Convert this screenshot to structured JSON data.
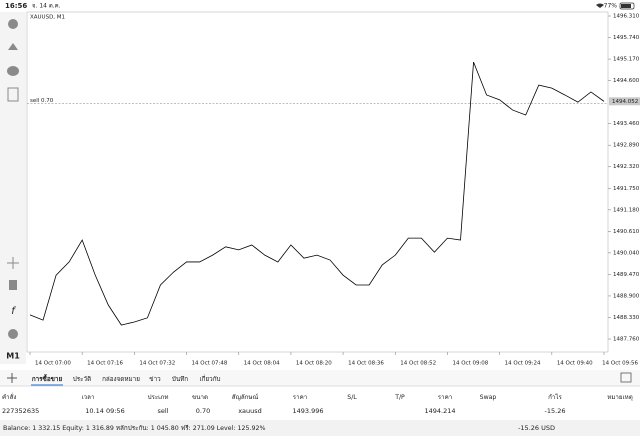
{
  "status_bar": {
    "time": "16:56",
    "date": "จ. 14 ต.ค.",
    "battery": "77%"
  },
  "toolbar": {
    "timeframe": "M1"
  },
  "chart_data": {
    "type": "line",
    "title": "XAUUSD, M1",
    "color": "#000000",
    "categories": [
      "14 Oct 07:00",
      null,
      null,
      null,
      "14 Oct 07:16",
      null,
      null,
      null,
      "14 Oct 07:32",
      null,
      null,
      null,
      "14 Oct 07:48",
      null,
      null,
      null,
      "14 Oct 08:04",
      null,
      null,
      null,
      "14 Oct 08:20",
      null,
      null,
      null,
      "14 Oct 08:36",
      null,
      null,
      null,
      "14 Oct 08:52",
      null,
      null,
      null,
      "14 Oct 09:08",
      null,
      null,
      null,
      "14 Oct 09:24",
      null,
      null,
      null,
      "14 Oct 09:40",
      null,
      null,
      null,
      "14 Oct 09:56"
    ],
    "values": [
      1488.4,
      1488.26,
      1489.45,
      1489.8,
      1490.38,
      1489.45,
      1488.66,
      1488.13,
      1488.21,
      1488.32,
      1489.19,
      1489.53,
      1489.8,
      1489.8,
      1489.98,
      1490.2,
      1490.12,
      1490.25,
      1489.98,
      1489.8,
      1490.25,
      1489.9,
      1489.98,
      1489.85,
      1489.45,
      1489.19,
      1489.19,
      1489.72,
      1489.98,
      1490.43,
      1490.43,
      1490.06,
      1490.43,
      1490.38,
      1495.09,
      1494.22,
      1494.09,
      1493.82,
      1493.69,
      1494.48,
      1494.4,
      1494.22,
      1494.03,
      1494.3,
      1494.05
    ],
    "ylim": [
      1487.416,
      1496.416
    ],
    "yticks": [
      {
        "value": 1496.31,
        "label": "1496.310"
      },
      {
        "value": 1495.74,
        "label": "1495.740"
      },
      {
        "value": 1495.17,
        "label": "1495.170"
      },
      {
        "value": 1494.6,
        "label": "1494.600"
      },
      {
        "value": 1493.46,
        "label": "1493.460"
      },
      {
        "value": 1492.89,
        "label": "1492.890"
      },
      {
        "value": 1492.32,
        "label": "1492.320"
      },
      {
        "value": 1491.75,
        "label": "1491.750"
      },
      {
        "value": 1491.18,
        "label": "1491.180"
      },
      {
        "value": 1490.61,
        "label": "1490.610"
      },
      {
        "value": 1490.04,
        "label": "1490.040"
      },
      {
        "value": 1489.47,
        "label": "1489.470"
      },
      {
        "value": 1488.9,
        "label": "1488.900"
      },
      {
        "value": 1488.33,
        "label": "1488.330"
      },
      {
        "value": 1487.76,
        "label": "1487.760"
      }
    ],
    "order_line": {
      "label": "sell 0.70",
      "value": 1493.996
    },
    "bid": {
      "value": 1494.052,
      "label": "1494.052"
    },
    "grid": false
  },
  "tabs": {
    "items": [
      "การซื้อขาย",
      "ประวัติ",
      "กล่องจดหมาย",
      "ข่าว",
      "บันทึก",
      "เกี่ยวกับ"
    ],
    "active": 0
  },
  "table": {
    "header": [
      "คำสั่ง",
      "เวลา",
      "ประเภท",
      "ขนาด",
      "สัญลักษณ์",
      "ราคา",
      "S/L",
      "T/P",
      "ราคา",
      "Swap",
      "กำไร",
      "หมายเหตุ"
    ],
    "rows": [
      [
        "227352635",
        "10.14 09:56",
        "sell",
        "0.70",
        "xauusd",
        "1493.996",
        null,
        null,
        "1494.214",
        null,
        "-15.26",
        null
      ]
    ]
  },
  "footer": {
    "summary": "Balance: 1 332.15 Equity: 1 316.89 หลักประกัน: 1 045.80 ฟรี: 271.09 Level: 125.92%",
    "profit": "-15.26 USD"
  }
}
